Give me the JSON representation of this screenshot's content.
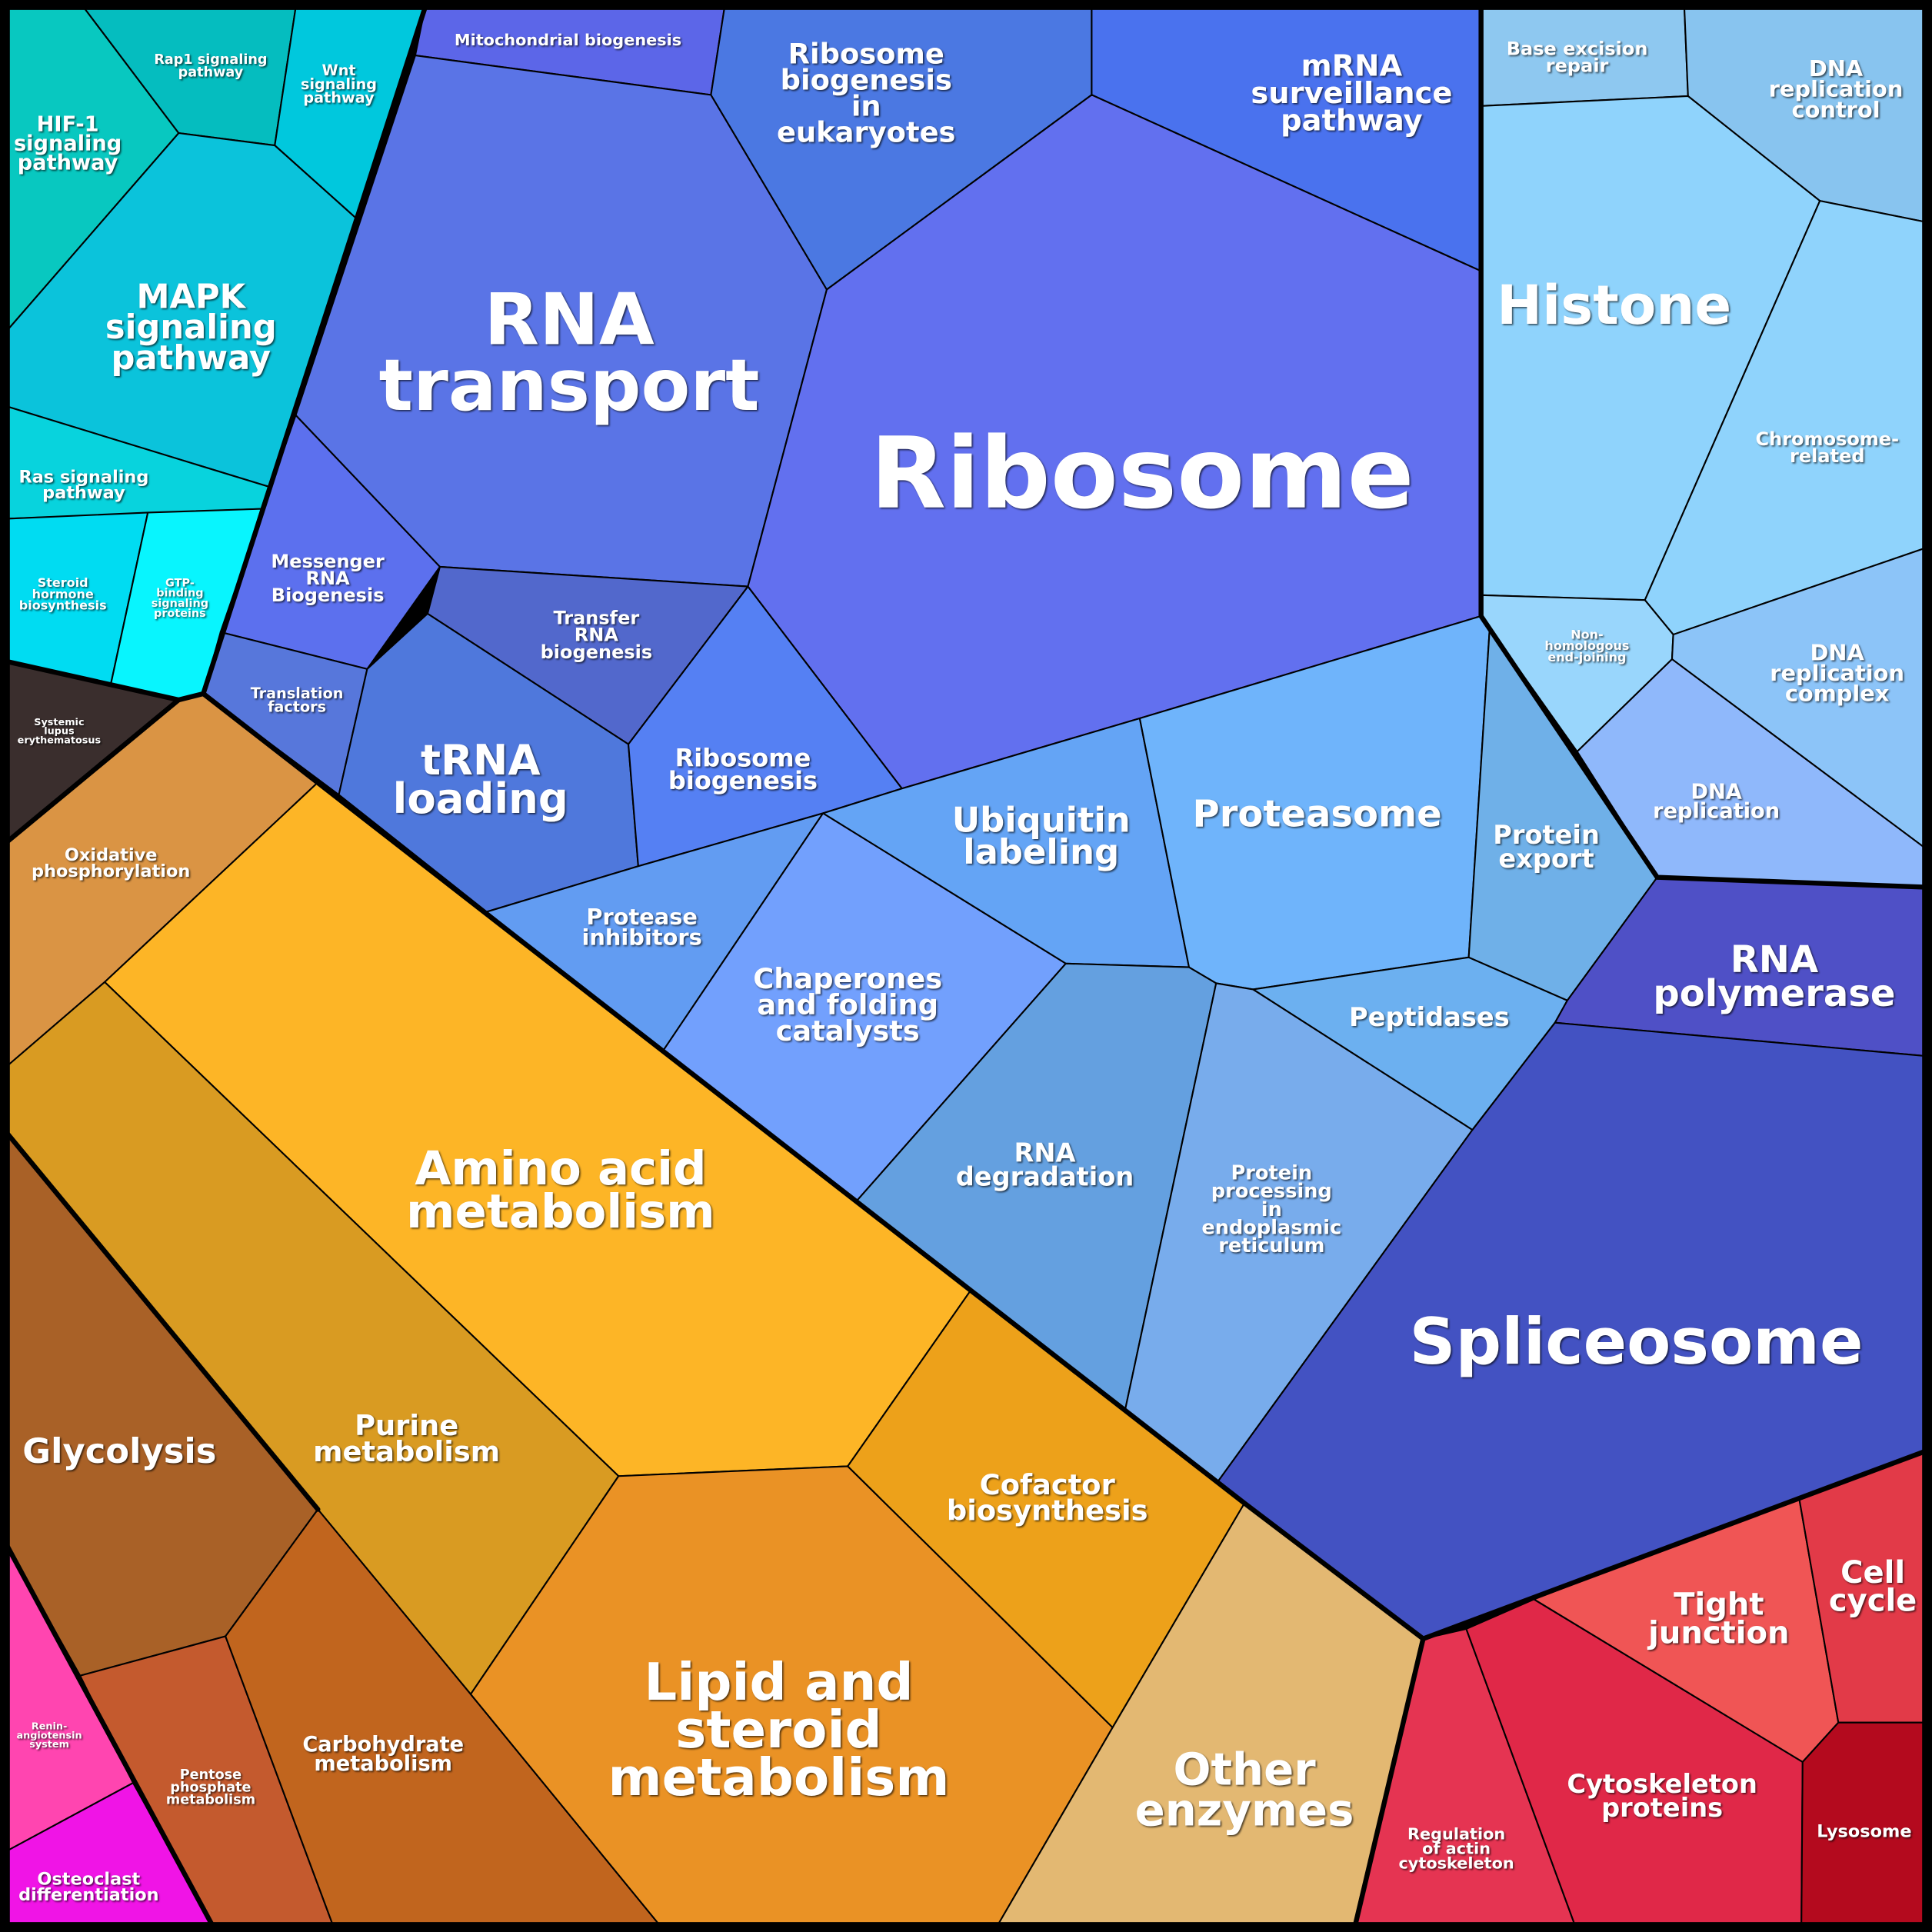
{
  "cells": [
    {
      "label": "HIF-1 signaling pathway",
      "lines": [
        "HIF-1",
        "signaling",
        "pathway"
      ],
      "color": "#08c8c0"
    },
    {
      "label": "Rap1 signaling pathway",
      "lines": [
        "Rap1 signaling",
        "pathway"
      ],
      "color": "#05bdbf"
    },
    {
      "label": "Wnt signaling pathway",
      "lines": [
        "Wnt",
        "signaling",
        "pathway"
      ],
      "color": "#00c8dd"
    },
    {
      "label": "MAPK signaling pathway",
      "lines": [
        "MAPK",
        "signaling",
        "pathway"
      ],
      "color": "#0bc3db"
    },
    {
      "label": "Ras signaling pathway",
      "lines": [
        "Ras signaling",
        "pathway"
      ],
      "color": "#08d3dd"
    },
    {
      "label": "Steroid hormone biosynthesis",
      "lines": [
        "Steroid",
        "hormone",
        "biosynthesis"
      ],
      "color": "#00dcf2"
    },
    {
      "label": "GTP-binding signaling proteins",
      "lines": [
        "GTP-",
        "binding",
        "signaling",
        "proteins"
      ],
      "color": "#08f5fe"
    },
    {
      "label": "Systemic lupus erythematosus",
      "lines": [
        "Systemic",
        "lupus",
        "erythematosus"
      ],
      "color": "#3a2e2d"
    },
    {
      "label": "Mitochondrial biogenesis",
      "lines": [
        "Mitochondrial biogenesis"
      ],
      "color": "#5c66e8"
    },
    {
      "label": "RNA transport",
      "lines": [
        "RNA",
        "transport"
      ],
      "color": "#5a74e6"
    },
    {
      "label": "Ribosome biogenesis in eukaryotes",
      "lines": [
        "Ribosome",
        "biogenesis",
        "in",
        "eukaryotes"
      ],
      "color": "#4b78e2"
    },
    {
      "label": "mRNA surveillance pathway",
      "lines": [
        "mRNA",
        "surveillance",
        "pathway"
      ],
      "color": "#4a72ee"
    },
    {
      "label": "Ribosome",
      "lines": [
        "Ribosome"
      ],
      "color": "#6270ef"
    },
    {
      "label": "Messenger RNA Biogenesis",
      "lines": [
        "Messenger",
        "RNA",
        "Biogenesis"
      ],
      "color": "#5c70ee"
    },
    {
      "label": "Transfer RNA biogenesis",
      "lines": [
        "Transfer",
        "RNA",
        "biogenesis"
      ],
      "color": "#5268cc"
    },
    {
      "label": "Translation factors",
      "lines": [
        "Translation",
        "factors"
      ],
      "color": "#5777db"
    },
    {
      "label": "tRNA loading",
      "lines": [
        "tRNA",
        "loading"
      ],
      "color": "#4f78dc"
    },
    {
      "label": "Ribosome biogenesis",
      "lines": [
        "Ribosome",
        "biogenesis"
      ],
      "color": "#5580f3"
    },
    {
      "label": "Protease inhibitors",
      "lines": [
        "Protease",
        "inhibitors"
      ],
      "color": "#629cf2"
    },
    {
      "label": "Chaperones and folding catalysts",
      "lines": [
        "Chaperones",
        "and folding",
        "catalysts"
      ],
      "color": "#72a0fd"
    },
    {
      "label": "Ubiquitin labeling",
      "lines": [
        "Ubiquitin",
        "labeling"
      ],
      "color": "#64a4f5"
    },
    {
      "label": "Proteasome",
      "lines": [
        "Proteasome"
      ],
      "color": "#6fb4fb"
    },
    {
      "label": "Protein export",
      "lines": [
        "Protein",
        "export"
      ],
      "color": "#6fb0e8"
    },
    {
      "label": "Peptidases",
      "lines": [
        "Peptidases"
      ],
      "color": "#6cb0f0"
    },
    {
      "label": "RNA degradation",
      "lines": [
        "RNA",
        "degradation"
      ],
      "color": "#64a0e0"
    },
    {
      "label": "Protein processing in endoplasmic reticulum",
      "lines": [
        "Protein",
        "processing",
        "in",
        "endoplasmic",
        "reticulum"
      ],
      "color": "#78acec"
    },
    {
      "label": "Base excision repair",
      "lines": [
        "Base excision",
        "repair"
      ],
      "color": "#8ec8f0"
    },
    {
      "label": "DNA replication control",
      "lines": [
        "DNA",
        "replication",
        "control"
      ],
      "color": "#88c4ef"
    },
    {
      "label": "Histone",
      "lines": [
        "Histone"
      ],
      "color": "#8fd3fc"
    },
    {
      "label": "Chromosome-related",
      "lines": [
        "Chromosome-",
        "related"
      ],
      "color": "#8fd3fc"
    },
    {
      "label": "Non-homologous end-joining",
      "lines": [
        "Non-",
        "homologous",
        "end-joining"
      ],
      "color": "#99d6fc"
    },
    {
      "label": "DNA replication complex",
      "lines": [
        "DNA",
        "replication",
        "complex"
      ],
      "color": "#8cc4f8"
    },
    {
      "label": "DNA replication",
      "lines": [
        "DNA",
        "replication"
      ],
      "color": "#8fb8fb"
    },
    {
      "label": "RNA polymerase",
      "lines": [
        "RNA",
        "polymerase"
      ],
      "color": "#4f50c6"
    },
    {
      "label": "Spliceosome",
      "lines": [
        "Spliceosome"
      ],
      "color": "#4352c2"
    },
    {
      "label": "Oxidative phosphorylation",
      "lines": [
        "Oxidative",
        "phosphorylation"
      ],
      "color": "#da9444"
    },
    {
      "label": "Amino acid metabolism",
      "lines": [
        "Amino acid",
        "metabolism"
      ],
      "color": "#fdb526"
    },
    {
      "label": "Purine metabolism",
      "lines": [
        "Purine",
        "metabolism"
      ],
      "color": "#d99b22"
    },
    {
      "label": "Glycolysis",
      "lines": [
        "Glycolysis"
      ],
      "color": "#a96127"
    },
    {
      "label": "Pentose phosphate metabolism",
      "lines": [
        "Pentose",
        "phosphate",
        "metabolism"
      ],
      "color": "#c45a2e"
    },
    {
      "label": "Carbohydrate metabolism",
      "lines": [
        "Carbohydrate",
        "metabolism"
      ],
      "color": "#c1651e"
    },
    {
      "label": "Lipid and steroid metabolism",
      "lines": [
        "Lipid and",
        "steroid",
        "metabolism"
      ],
      "color": "#ea9225"
    },
    {
      "label": "Cofactor biosynthesis",
      "lines": [
        "Cofactor",
        "biosynthesis"
      ],
      "color": "#eda11a"
    },
    {
      "label": "Other enzymes",
      "lines": [
        "Other",
        "enzymes"
      ],
      "color": "#e3b872"
    },
    {
      "label": "Renin-angiotensin system",
      "lines": [
        "Renin-",
        "angiotensin",
        "system"
      ],
      "color": "#ff45b0"
    },
    {
      "label": "Osteoclast differentiation",
      "lines": [
        "Osteoclast",
        "differentiation"
      ],
      "color": "#f014e6"
    },
    {
      "label": "Regulation of actin cytoskeleton",
      "lines": [
        "Regulation",
        "of actin",
        "cytoskeleton"
      ],
      "color": "#e53452"
    },
    {
      "label": "Cytoskeleton proteins",
      "lines": [
        "Cytoskeleton",
        "proteins"
      ],
      "color": "#e02848"
    },
    {
      "label": "Tight junction",
      "lines": [
        "Tight",
        "junction"
      ],
      "color": "#f05555"
    },
    {
      "label": "Cell cycle",
      "lines": [
        "Cell",
        "cycle"
      ],
      "color": "#e23a48"
    },
    {
      "label": "Lysosome",
      "lines": [
        "Lysosome"
      ],
      "color": "#b40a1e"
    }
  ]
}
